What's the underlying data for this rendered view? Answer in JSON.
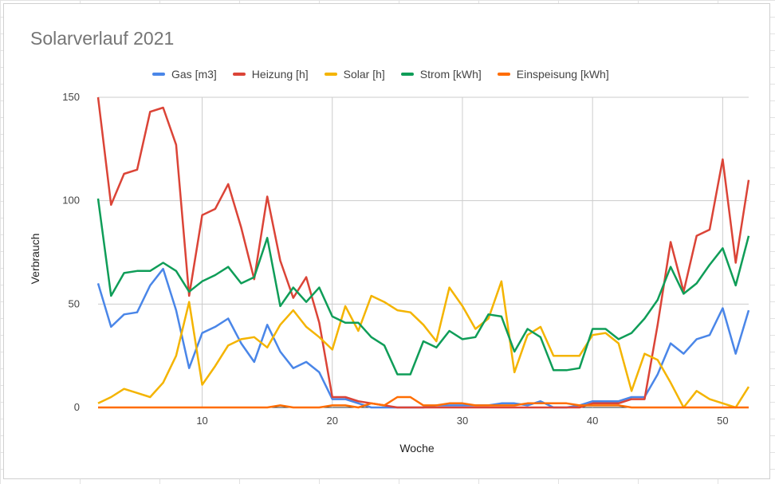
{
  "chart_data": {
    "type": "line",
    "title": "Solarverlauf 2021",
    "xlabel": "Woche",
    "ylabel": "Verbrauch",
    "xlim": [
      2,
      52
    ],
    "ylim": [
      0,
      150
    ],
    "x_ticks": [
      10,
      20,
      30,
      40,
      50
    ],
    "y_ticks": [
      0,
      50,
      100,
      150
    ],
    "grid": true,
    "legend_position": "top",
    "x": [
      2,
      3,
      4,
      5,
      6,
      7,
      8,
      9,
      10,
      11,
      12,
      13,
      14,
      15,
      16,
      17,
      18,
      19,
      20,
      21,
      22,
      23,
      24,
      25,
      26,
      27,
      28,
      29,
      30,
      31,
      32,
      33,
      34,
      35,
      36,
      37,
      38,
      39,
      40,
      41,
      42,
      43,
      44,
      45,
      46,
      47,
      48,
      49,
      50,
      51,
      52
    ],
    "series": [
      {
        "name": "Gas [m3]",
        "color": "#4a86e8",
        "values": [
          60,
          39,
          45,
          46,
          59,
          67,
          47,
          19,
          36,
          39,
          43,
          31,
          22,
          40,
          27,
          19,
          22,
          17,
          4,
          4,
          2,
          0,
          0,
          0,
          0,
          0,
          1,
          1,
          1,
          1,
          1,
          2,
          2,
          1,
          3,
          0,
          0,
          1,
          3,
          3,
          3,
          5,
          5,
          16,
          31,
          26,
          33,
          35,
          48,
          26,
          47
        ]
      },
      {
        "name": "Heizung [h]",
        "color": "#db4437",
        "values": [
          150,
          98,
          113,
          115,
          143,
          145,
          127,
          54,
          93,
          96,
          108,
          87,
          62,
          102,
          71,
          53,
          63,
          41,
          5,
          5,
          3,
          2,
          1,
          0,
          0,
          0,
          0,
          0,
          0,
          0,
          0,
          0,
          0,
          0,
          0,
          0,
          0,
          0,
          2,
          2,
          2,
          4,
          4,
          40,
          80,
          56,
          83,
          86,
          120,
          70,
          110
        ]
      },
      {
        "name": "Solar [h]",
        "color": "#f4b400",
        "values": [
          2,
          5,
          9,
          7,
          5,
          12,
          25,
          51,
          11,
          20,
          30,
          33,
          34,
          29,
          40,
          47,
          39,
          34,
          28,
          49,
          37,
          54,
          51,
          47,
          46,
          40,
          32,
          58,
          49,
          38,
          43,
          61,
          17,
          35,
          39,
          25,
          25,
          25,
          35,
          36,
          31,
          8,
          26,
          23,
          12,
          0,
          8,
          4,
          2,
          0,
          10
        ]
      },
      {
        "name": "Strom [kWh]",
        "color": "#0f9d58",
        "values": [
          101,
          54,
          65,
          66,
          66,
          70,
          66,
          56,
          61,
          64,
          68,
          60,
          63,
          82,
          49,
          58,
          51,
          58,
          44,
          41,
          41,
          34,
          30,
          16,
          16,
          32,
          29,
          37,
          33,
          34,
          45,
          44,
          27,
          38,
          34,
          18,
          18,
          19,
          38,
          38,
          33,
          36,
          43,
          52,
          68,
          55,
          60,
          69,
          77,
          59,
          83
        ]
      },
      {
        "name": "Einspeisung [kWh]",
        "color": "#ff6d01",
        "values": [
          0,
          0,
          0,
          0,
          0,
          0,
          0,
          0,
          0,
          0,
          0,
          0,
          0,
          0,
          1,
          0,
          0,
          0,
          1,
          1,
          0,
          2,
          1,
          5,
          5,
          1,
          1,
          2,
          2,
          1,
          1,
          1,
          1,
          2,
          2,
          2,
          2,
          1,
          1,
          1,
          1,
          0,
          0,
          0,
          0,
          0,
          0,
          0,
          0,
          0,
          0
        ]
      }
    ]
  }
}
